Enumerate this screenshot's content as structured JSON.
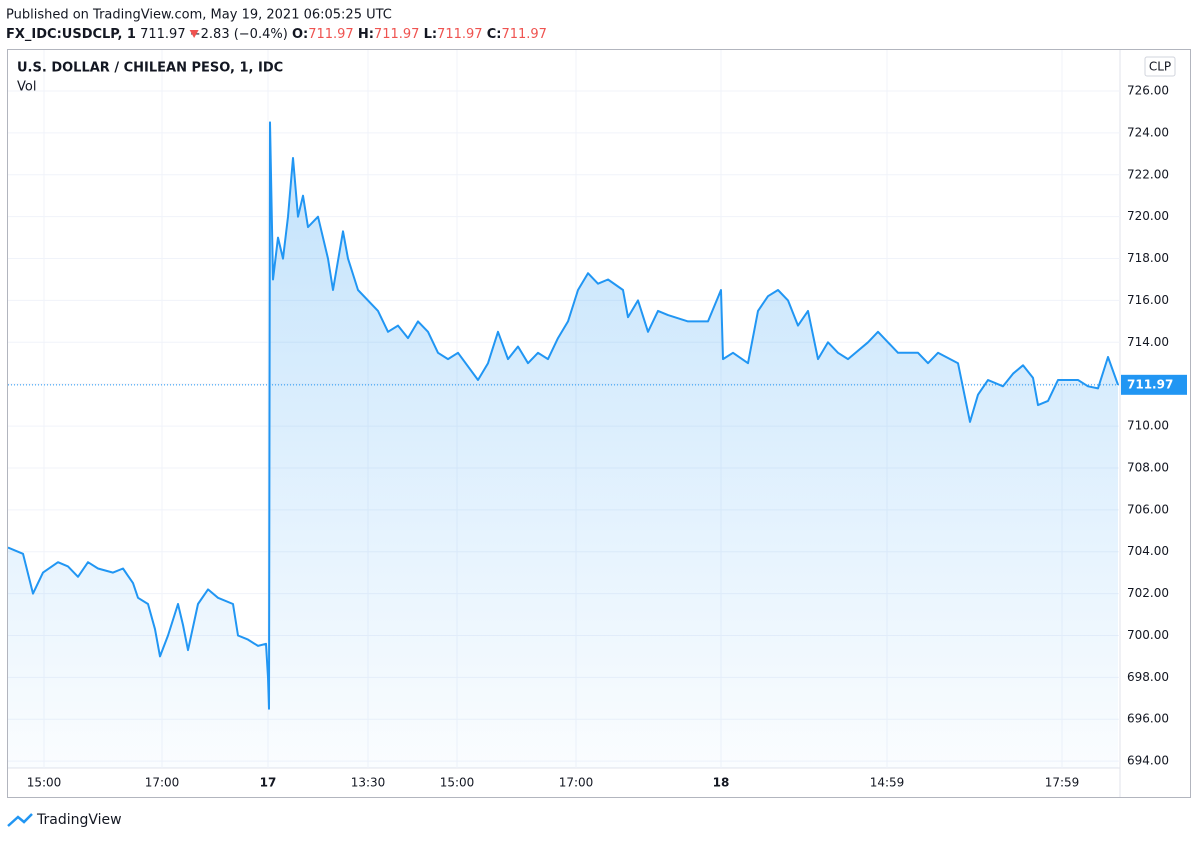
{
  "header": {
    "published": "Published on TradingView.com, May 19, 2021 06:05:25 UTC",
    "symbol": "FX_IDC:USDCLP, 1",
    "price": "711.97",
    "change": "−2.83 (−0.4%)",
    "ohlc": [
      {
        "label": "O:",
        "value": "711.97"
      },
      {
        "label": "H:",
        "value": "711.97"
      },
      {
        "label": "L:",
        "value": "711.97"
      },
      {
        "label": "C:",
        "value": "711.97"
      }
    ]
  },
  "chart_data": {
    "type": "line",
    "title": "U.S. DOLLAR / CHILEAN PESO, 1, IDC",
    "subtitle": "Vol",
    "currency": "CLP",
    "last_value": 711.97,
    "last_label": "711.97",
    "xlim": [
      0,
      111.2
    ],
    "ylim": [
      693.67,
      727.96
    ],
    "grid": true,
    "xticks": [
      {
        "value": 3.6,
        "label": "15:00"
      },
      {
        "value": 15.4,
        "label": "17:00"
      },
      {
        "value": 26,
        "label": "17"
      },
      {
        "value": 36,
        "label": "13:30"
      },
      {
        "value": 44.9,
        "label": "15:00"
      },
      {
        "value": 56.8,
        "label": "17:00"
      },
      {
        "value": 71.3,
        "label": "18"
      },
      {
        "value": 87.9,
        "label": "14:59"
      },
      {
        "value": 105.4,
        "label": "17:59"
      }
    ],
    "yticks": [
      {
        "value": 694,
        "label": "694.00"
      },
      {
        "value": 696,
        "label": "696.00"
      },
      {
        "value": 698,
        "label": "698.00"
      },
      {
        "value": 700,
        "label": "700.00"
      },
      {
        "value": 702,
        "label": "702.00"
      },
      {
        "value": 704,
        "label": "704.00"
      },
      {
        "value": 706,
        "label": "706.00"
      },
      {
        "value": 708,
        "label": "708.00"
      },
      {
        "value": 710,
        "label": "710.00"
      },
      {
        "value": 712,
        "label": "712.00"
      },
      {
        "value": 714,
        "label": "714.00"
      },
      {
        "value": 716,
        "label": "716.00"
      },
      {
        "value": 718,
        "label": "718.00"
      },
      {
        "value": 720,
        "label": "720.00"
      },
      {
        "value": 722,
        "label": "722.00"
      },
      {
        "value": 724,
        "label": "724.00"
      },
      {
        "value": 726,
        "label": "726.00"
      }
    ],
    "series": [
      {
        "name": "USDCLP",
        "color": "#2196f3",
        "x": [
          0,
          1.5,
          2.5,
          3.5,
          5,
          6,
          7,
          8,
          9,
          10.5,
          11.5,
          12.5,
          13,
          14,
          14.7,
          15.2,
          16,
          17,
          17.5,
          18,
          19,
          20,
          21,
          22.5,
          23,
          24,
          25,
          25.8,
          26,
          26.1,
          26.2,
          26.5,
          27,
          27.5,
          28,
          28.5,
          29,
          29.5,
          30,
          31,
          32,
          32.5,
          33.5,
          34,
          35,
          37,
          38,
          39,
          40,
          41,
          42,
          43,
          44,
          45,
          47,
          48,
          49,
          50,
          51,
          52,
          53,
          54,
          55,
          56,
          57,
          58,
          59,
          60,
          61.5,
          62,
          63,
          64,
          65,
          66,
          68,
          70,
          71.3,
          71.5,
          72.5,
          74,
          75,
          76,
          77,
          78,
          79,
          80,
          81,
          82,
          83,
          84,
          86,
          87,
          89,
          91,
          92,
          93,
          95,
          96.2,
          97,
          98,
          99.5,
          100.5,
          101.5,
          102.5,
          103,
          104,
          105,
          106,
          107,
          108,
          109,
          110,
          111
        ],
        "values": [
          704.2,
          703.9,
          702,
          703,
          703.5,
          703.3,
          702.8,
          703.5,
          703.2,
          703,
          703.2,
          702.5,
          701.8,
          701.5,
          700.3,
          699,
          700,
          701.5,
          700.5,
          699.3,
          701.5,
          702.2,
          701.8,
          701.5,
          700,
          699.8,
          699.5,
          699.6,
          698,
          696.5,
          724.5,
          717,
          719,
          718,
          720,
          722.8,
          720,
          721,
          719.5,
          720,
          718,
          716.5,
          719.3,
          718,
          716.5,
          715.5,
          714.5,
          714.8,
          714.2,
          715,
          714.5,
          713.5,
          713.2,
          713.5,
          712.2,
          713,
          714.5,
          713.2,
          713.8,
          713,
          713.5,
          713.2,
          714.2,
          715,
          716.5,
          717.3,
          716.8,
          717,
          716.5,
          715.2,
          716,
          714.5,
          715.5,
          715.3,
          715,
          715,
          716.5,
          713.2,
          713.5,
          713,
          715.5,
          716.2,
          716.5,
          716,
          714.8,
          715.5,
          713.2,
          714,
          713.5,
          713.2,
          714,
          714.5,
          713.5,
          713.5,
          713,
          713.5,
          713,
          710.2,
          711.5,
          712.2,
          711.9,
          712.5,
          712.9,
          712.3,
          711,
          711.2,
          712.2,
          712.2,
          712.2,
          711.9,
          711.8,
          713.3,
          711.97
        ]
      }
    ]
  },
  "footer": {
    "brand": "TradingView"
  }
}
